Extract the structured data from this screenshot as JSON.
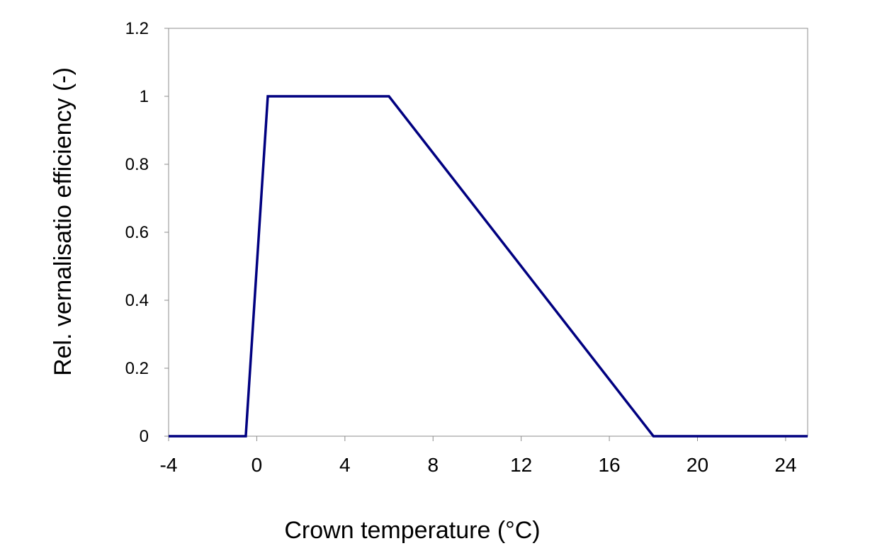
{
  "chart_data": {
    "type": "line",
    "title": "",
    "xlabel": "Crown temperature (°C)",
    "ylabel": "Rel. vernalisatio efficiency (-)",
    "xlim": [
      -4,
      25
    ],
    "ylim": [
      0,
      1.2
    ],
    "x_ticks": [
      -4,
      0,
      4,
      8,
      12,
      16,
      20,
      24
    ],
    "x_tick_labels": [
      "-4",
      "0",
      "4",
      "8",
      "12",
      "16",
      "20",
      "24"
    ],
    "y_ticks": [
      0,
      0.2,
      0.4,
      0.6,
      0.8,
      1,
      1.2
    ],
    "y_tick_labels": [
      "0",
      "0.2",
      "0.4",
      "0.6",
      "0.8",
      "1",
      "1.2"
    ],
    "grid": false,
    "legend": "none",
    "series": [
      {
        "color": "#000080",
        "x": [
          -4,
          -0.5,
          0.5,
          6,
          18,
          25
        ],
        "y": [
          0,
          0,
          1,
          1,
          0,
          0
        ]
      }
    ]
  }
}
